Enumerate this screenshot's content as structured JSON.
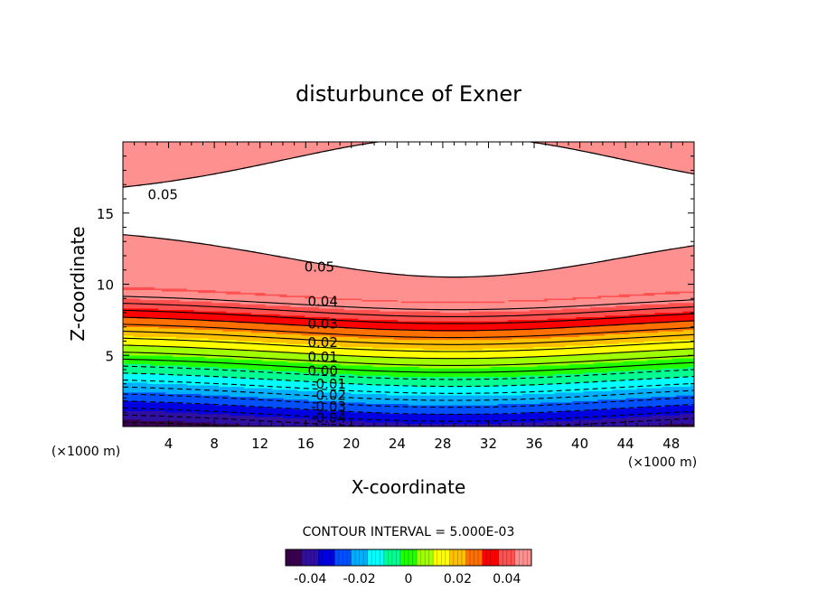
{
  "chart_data": {
    "type": "contour",
    "title": "disturbunce of Exner",
    "xlabel": "X-coordinate",
    "ylabel": "Z-coordinate",
    "x_unit_left": "(×1000 m)",
    "x_unit_right": "(×1000 m)",
    "xlim": [
      0,
      50
    ],
    "ylim": [
      0,
      20
    ],
    "x_ticks": [
      4,
      8,
      12,
      16,
      20,
      24,
      28,
      32,
      36,
      40,
      44,
      48
    ],
    "y_ticks": [
      5,
      10,
      15
    ],
    "contour_interval_text": "CONTOUR INTERVAL = 5.000E-03",
    "contour_interval": 0.005,
    "field_range": [
      -0.05,
      0.05
    ],
    "contour_labels": [
      {
        "text": "0.05",
        "x": 3.5,
        "z": 16.3
      },
      {
        "text": "0.05",
        "x": 17.2,
        "z": 11.2
      },
      {
        "text": "0.04",
        "x": 17.5,
        "z": 8.8
      },
      {
        "text": "0.03",
        "x": 17.5,
        "z": 7.2
      },
      {
        "text": "0.02",
        "x": 17.5,
        "z": 5.9
      },
      {
        "text": "0.01",
        "x": 17.5,
        "z": 4.9
      },
      {
        "text": "0.00",
        "x": 17.5,
        "z": 3.9
      },
      {
        "text": "-0.01",
        "x": 18.0,
        "z": 3.0
      },
      {
        "text": "-0.02",
        "x": 18.0,
        "z": 2.2
      },
      {
        "text": "-0.03",
        "x": 18.0,
        "z": 1.4
      },
      {
        "text": "-0.04",
        "x": 18.0,
        "z": 0.6
      }
    ],
    "colorbar": {
      "range": [
        -0.05,
        0.05
      ],
      "tick_values": [
        -0.04,
        -0.02,
        0,
        0.02,
        0.04
      ],
      "tick_labels": [
        "-0.04",
        "-0.02",
        "0",
        "0.02",
        "0.04"
      ],
      "colors": [
        "#3a0050",
        "#3010a0",
        "#0000e0",
        "#0050ff",
        "#00b0ff",
        "#00ffff",
        "#00ff90",
        "#20ff00",
        "#a0ff00",
        "#ffff00",
        "#ffc000",
        "#ff7000",
        "#ff0000",
        "#ff5050",
        "#ff9090"
      ]
    }
  }
}
